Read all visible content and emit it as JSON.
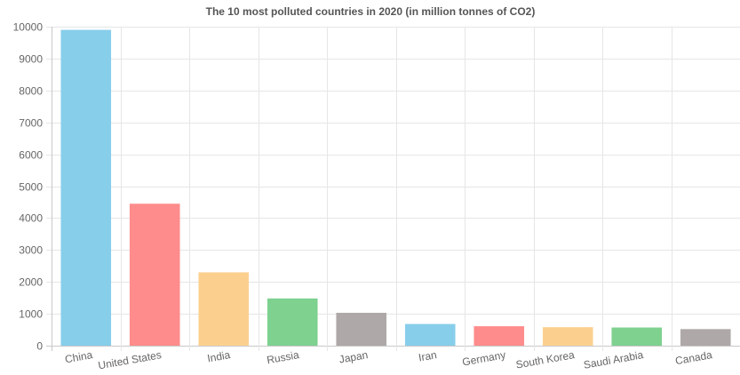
{
  "chart_data": {
    "type": "bar",
    "title": "The 10 most polluted countries in 2020 (in million tonnes of CO2)",
    "xlabel": "",
    "ylabel": "",
    "categories": [
      "China",
      "United States",
      "India",
      "Russia",
      "Japan",
      "Iran",
      "Germany",
      "South Korea",
      "Saudi Arabia",
      "Canada"
    ],
    "values": [
      9900,
      4450,
      2300,
      1480,
      1030,
      680,
      610,
      580,
      570,
      520
    ],
    "ylim": [
      0,
      10000
    ],
    "yticks": [
      "0",
      "1000",
      "2000",
      "3000",
      "4000",
      "5000",
      "6000",
      "7000",
      "8000",
      "9000",
      "10000"
    ],
    "grid": true,
    "legend": "none",
    "colors": [
      "#87ceeb",
      "#ff8c8c",
      "#fbd08f",
      "#7ed18f",
      "#aea8a8",
      "#87ceeb",
      "#ff8c8c",
      "#fbd08f",
      "#7ed18f",
      "#aea8a8"
    ]
  }
}
